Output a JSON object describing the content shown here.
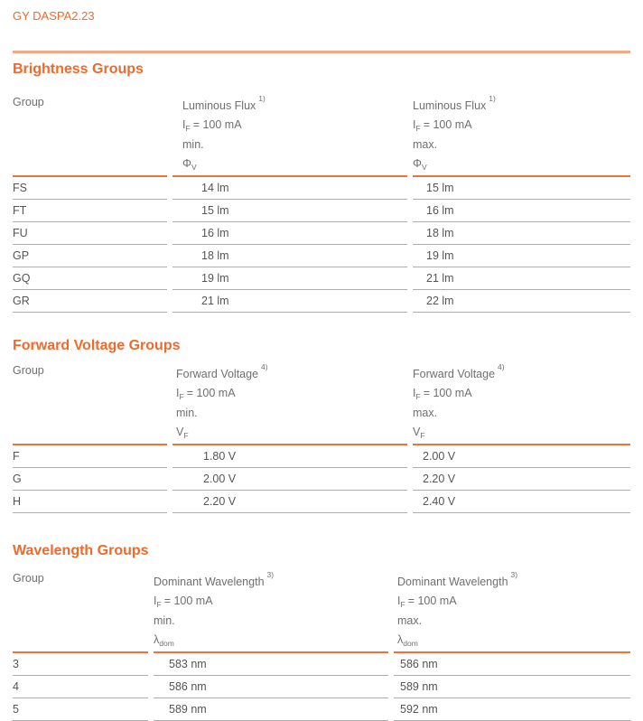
{
  "doc_title": "GY DASPA2.23",
  "colors": {
    "accent_orange": "#EC6B2D",
    "header_rule_orange": "#E8763C",
    "top_divider_salmon": "#F3A983",
    "row_line_gray": "#ADADAD",
    "header_text_gray": "#6F6F6F",
    "data_text_gray": "#555555"
  },
  "sections": [
    {
      "heading": "Brightness Groups",
      "group_label": "Group",
      "columns": {
        "min": {
          "title": "Luminous Flux",
          "sup": "1)",
          "cond_sym": "I",
          "cond_sub": "F",
          "cond_rest": "= 100 mA",
          "bound": "min.",
          "sym": "Φ",
          "sym_sub": "V"
        },
        "max": {
          "title": "Luminous Flux",
          "sup": "1)",
          "cond_sym": "I",
          "cond_sub": "F",
          "cond_rest": "= 100 mA",
          "bound": "max.",
          "sym": "Φ",
          "sym_sub": "V"
        }
      },
      "rows": [
        {
          "group": "FS",
          "min": "14 lm",
          "max": "15 lm"
        },
        {
          "group": "FT",
          "min": "15 lm",
          "max": "16 lm"
        },
        {
          "group": "FU",
          "min": "16 lm",
          "max": "18 lm"
        },
        {
          "group": "GP",
          "min": "18 lm",
          "max": "19 lm"
        },
        {
          "group": "GQ",
          "min": "19 lm",
          "max": "21 lm"
        },
        {
          "group": "GR",
          "min": "21 lm",
          "max": "22 lm"
        }
      ]
    },
    {
      "heading": "Forward Voltage Groups",
      "group_label": "Group",
      "columns": {
        "min": {
          "title": "Forward Voltage",
          "sup": "4)",
          "cond_sym": "I",
          "cond_sub": "F",
          "cond_rest": "= 100 mA",
          "bound": "min.",
          "sym": "V",
          "sym_sub": "F"
        },
        "max": {
          "title": "Forward Voltage",
          "sup": "4)",
          "cond_sym": "I",
          "cond_sub": "F",
          "cond_rest": "= 100 mA",
          "bound": "max.",
          "sym": "V",
          "sym_sub": "F"
        }
      },
      "rows": [
        {
          "group": "F",
          "min": "1.80 V",
          "max": "2.00 V"
        },
        {
          "group": "G",
          "min": "2.00 V",
          "max": "2.20 V"
        },
        {
          "group": "H",
          "min": "2.20 V",
          "max": "2.40 V"
        }
      ]
    },
    {
      "heading": "Wavelength Groups",
      "group_label": "Group",
      "columns": {
        "min": {
          "title": "Dominant Wavelength",
          "sup": "3)",
          "cond_sym": "I",
          "cond_sub": "F",
          "cond_rest": "= 100 mA",
          "bound": "min.",
          "sym": "λ",
          "sym_sub": "dom"
        },
        "max": {
          "title": "Dominant Wavelength",
          "sup": "3)",
          "cond_sym": "I",
          "cond_sub": "F",
          "cond_rest": "= 100 mA",
          "bound": "max.",
          "sym": "λ",
          "sym_sub": "dom"
        }
      },
      "rows": [
        {
          "group": "3",
          "min": "583 nm",
          "max": "586 nm"
        },
        {
          "group": "4",
          "min": "586 nm",
          "max": "589 nm"
        },
        {
          "group": "5",
          "min": "589 nm",
          "max": "592 nm"
        }
      ]
    }
  ]
}
